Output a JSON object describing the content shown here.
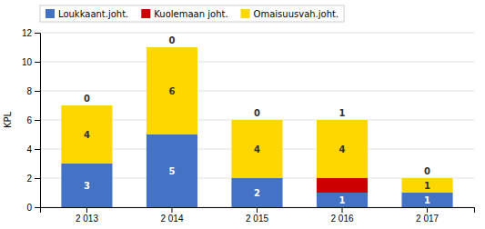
{
  "chart_data": {
    "type": "bar",
    "stacked": true,
    "categories": [
      "2 013",
      "2 014",
      "2 015",
      "2 016",
      "2 017"
    ],
    "series": [
      {
        "name": "Loukkaant.joht.",
        "color": "#4472C4",
        "values": [
          3,
          5,
          2,
          1,
          1
        ]
      },
      {
        "name": "Kuolemaan joht.",
        "color": "#CC0000",
        "values": [
          0,
          0,
          0,
          1,
          0
        ]
      },
      {
        "name": "Omaisuusvah.joht.",
        "color": "#FFD700",
        "values": [
          4,
          6,
          4,
          4,
          1
        ]
      }
    ],
    "ylabel": "KPL",
    "ylim": [
      0,
      12
    ],
    "yticks": [
      0,
      2,
      4,
      6,
      8,
      10,
      12
    ],
    "grid": true,
    "data_labels": true,
    "legend": "top"
  }
}
